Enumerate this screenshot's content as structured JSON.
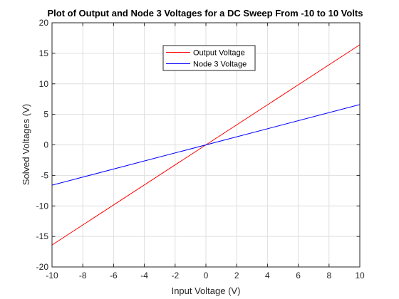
{
  "chart_data": {
    "type": "line",
    "title": "Plot of Output and Node 3 Voltages for a DC Sweep From -10 to 10 Volts",
    "xlabel": "Input Voltage (V)",
    "ylabel": "Solved Voltages (V)",
    "xlim": [
      -10,
      10
    ],
    "ylim": [
      -20,
      20
    ],
    "xticks": [
      -10,
      -8,
      -6,
      -4,
      -2,
      0,
      2,
      4,
      6,
      8,
      10
    ],
    "yticks": [
      -20,
      -15,
      -10,
      -5,
      0,
      5,
      10,
      15,
      20
    ],
    "grid": true,
    "legend_position": "top-center",
    "series": [
      {
        "name": "Output Voltage",
        "color": "#ff0000",
        "x": [
          -10,
          10
        ],
        "y": [
          -16.4,
          16.4
        ]
      },
      {
        "name": "Node 3 Voltage",
        "color": "#0000ff",
        "x": [
          -10,
          10
        ],
        "y": [
          -6.6,
          6.6
        ]
      }
    ]
  }
}
